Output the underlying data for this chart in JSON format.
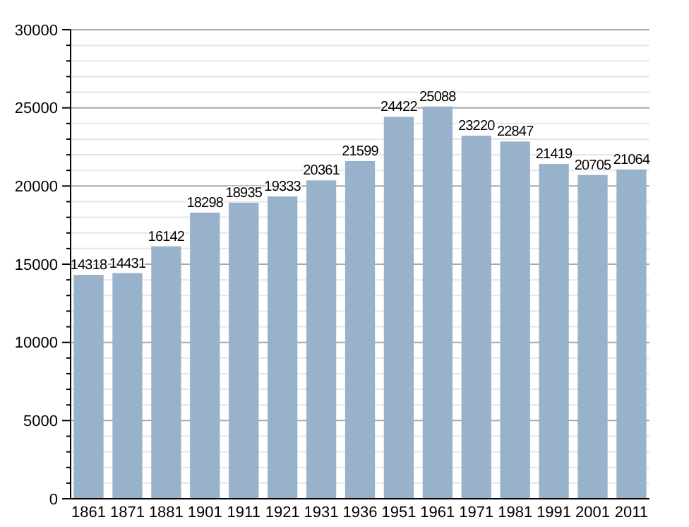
{
  "chart_data": {
    "type": "bar",
    "categories": [
      "1861",
      "1871",
      "1881",
      "1901",
      "1911",
      "1921",
      "1931",
      "1936",
      "1951",
      "1961",
      "1971",
      "1981",
      "1991",
      "2001",
      "2011"
    ],
    "values": [
      14318,
      14431,
      16142,
      18298,
      18935,
      19333,
      20361,
      21599,
      24422,
      25088,
      23220,
      22847,
      21419,
      20705,
      21064
    ],
    "color": "#98b2cc",
    "ylim": [
      0,
      30000
    ],
    "yticks": [
      0,
      {
        "value": 1000,
        "label": null
      },
      {
        "value": 2000,
        "label": null
      },
      {
        "value": 3000,
        "label": null
      },
      {
        "value": 4000,
        "label": null
      },
      5000,
      {
        "value": 6000,
        "label": null
      },
      {
        "value": 7000,
        "label": null
      },
      {
        "value": 8000,
        "label": null
      },
      {
        "value": 9000,
        "label": null
      },
      10000,
      {
        "value": 11000,
        "label": null
      },
      {
        "value": 12000,
        "label": null
      },
      {
        "value": 13000,
        "label": null
      },
      {
        "value": 14000,
        "label": null
      },
      15000,
      {
        "value": 16000,
        "label": null
      },
      {
        "value": 17000,
        "label": null
      },
      {
        "value": 18000,
        "label": null
      },
      {
        "value": 19000,
        "label": null
      },
      20000,
      {
        "value": 21000,
        "label": null
      },
      {
        "value": 22000,
        "label": null
      },
      {
        "value": 23000,
        "label": null
      },
      {
        "value": 24000,
        "label": null
      },
      25000,
      {
        "value": 26000,
        "label": null
      },
      {
        "value": 27000,
        "label": null
      },
      {
        "value": 28000,
        "label": null
      },
      {
        "value": 29000,
        "label": null
      },
      30000
    ],
    "grid": "y",
    "data_labels": true
  }
}
